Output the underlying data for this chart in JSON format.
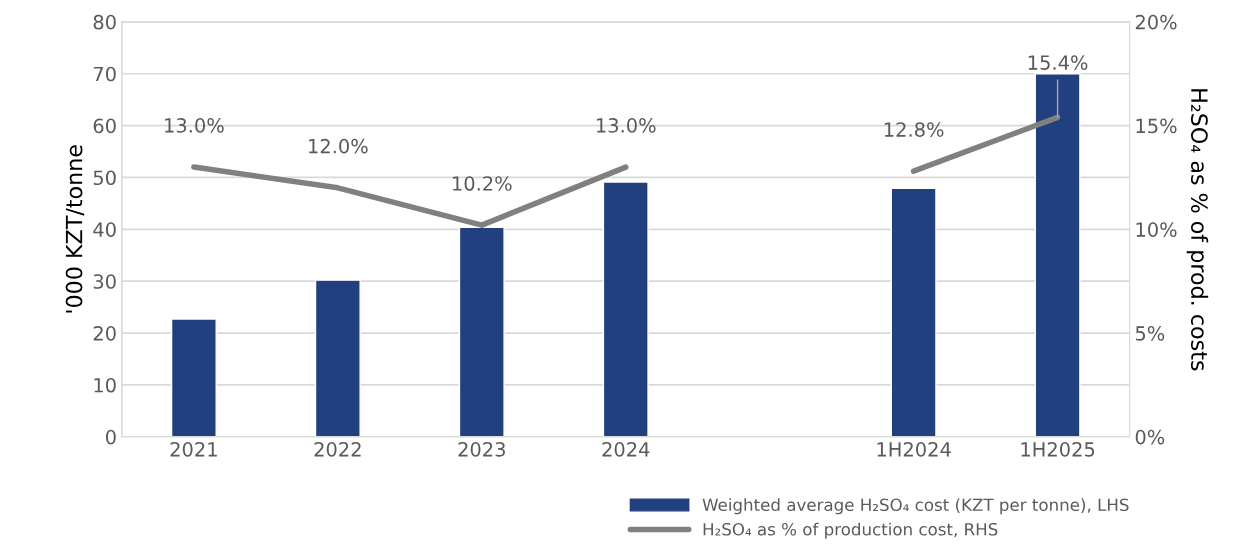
{
  "chart_data": {
    "type": "bar",
    "ylabel": "'000 KZT/tonne",
    "y2label": "H₂SO₄ as % of prod. costs",
    "categories": [
      "2021",
      "2022",
      "2023",
      "2024",
      null,
      "1H2024",
      "1H2025"
    ],
    "series": [
      {
        "name": "Weighted average H₂SO₄ cost (KZT per tonne), LHS",
        "color": "#22407f",
        "values": [
          22.7,
          30.2,
          40.4,
          49.1,
          null,
          47.9,
          70.0
        ]
      },
      {
        "name": "H₂SO₄ as % of production cost, RHS",
        "type": "line",
        "axis": "y2",
        "color": "#808080",
        "values": [
          13.0,
          12.0,
          10.2,
          13.0,
          null,
          12.8,
          15.4
        ],
        "value_labels": [
          "13.0%",
          "12.0%",
          "10.2%",
          "13.0%",
          null,
          "12.8%",
          "15.4%"
        ]
      }
    ],
    "ylim": [
      0,
      80
    ],
    "yticks": [
      0,
      10,
      20,
      30,
      40,
      50,
      60,
      70,
      80
    ],
    "y2lim": [
      0,
      20
    ],
    "y2ticks": [
      {
        "value": 0,
        "label": "0%"
      },
      {
        "value": 5,
        "label": "5%"
      },
      {
        "value": 10,
        "label": "10%"
      },
      {
        "value": 15,
        "label": "15%"
      },
      {
        "value": 20,
        "label": "20%"
      }
    ],
    "grid": "y",
    "legend": "bottom right",
    "marker": "none",
    "line_style": "solid"
  }
}
